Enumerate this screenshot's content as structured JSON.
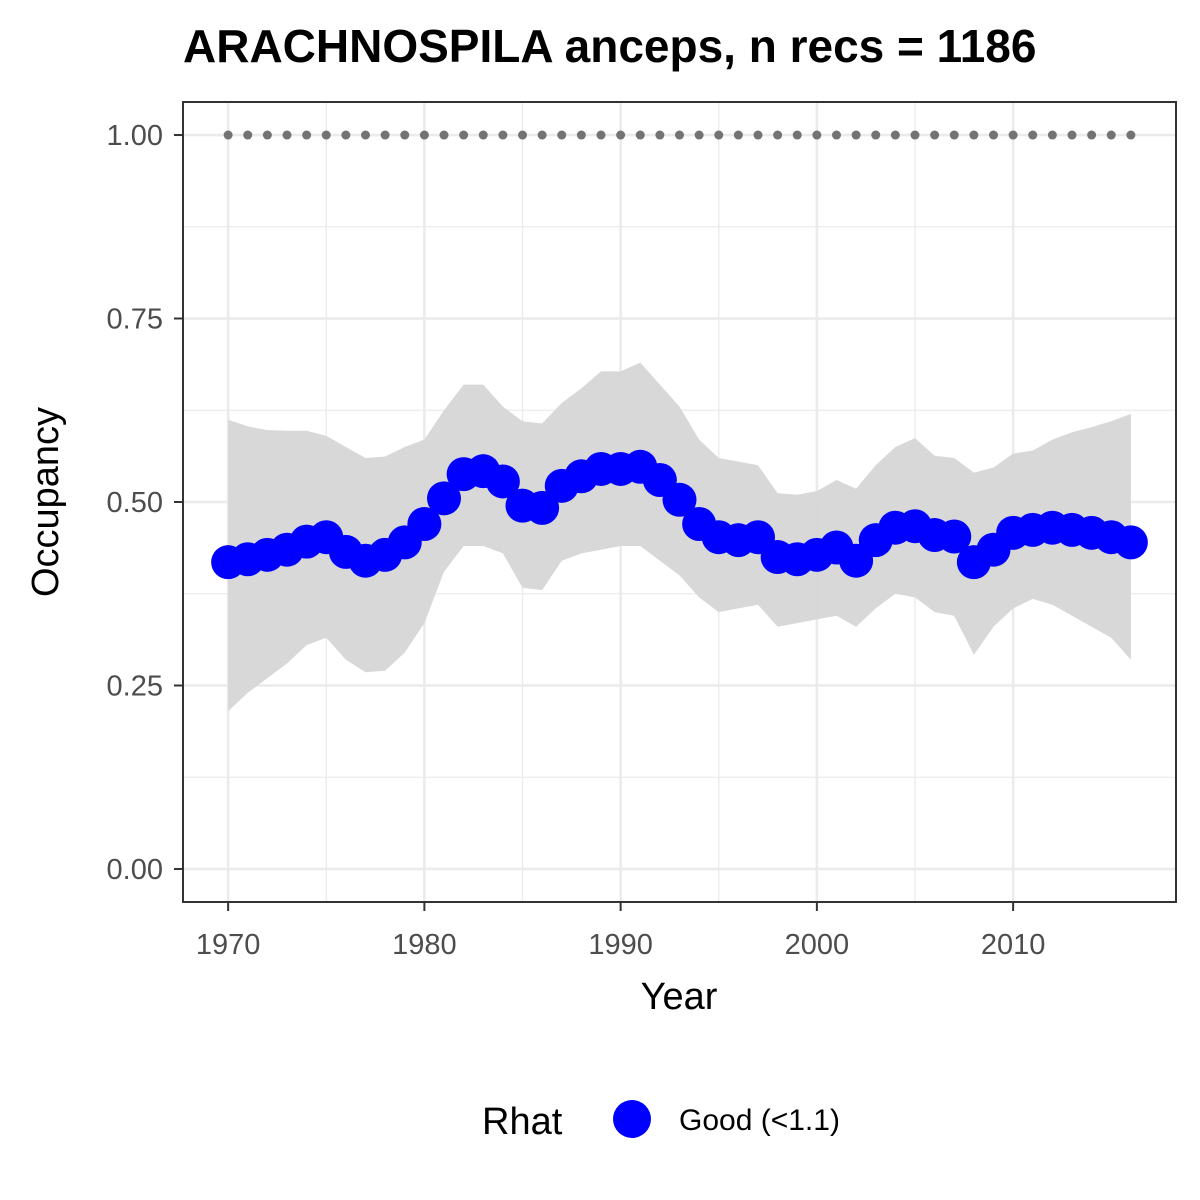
{
  "chart_data": {
    "type": "line",
    "title": "ARACHNOSPILA anceps, n recs = 1186",
    "xlabel": "Year",
    "ylabel": "Occupancy",
    "xlim": [
      1967.7,
      2018.3
    ],
    "ylim": [
      -0.045,
      1.045
    ],
    "x_ticks": [
      1970,
      1980,
      1990,
      2000,
      2010
    ],
    "y_ticks": [
      0.0,
      0.25,
      0.5,
      0.75,
      1.0
    ],
    "y_tick_labels": [
      "0.00",
      "0.25",
      "0.50",
      "0.75",
      "1.00"
    ],
    "grid": true,
    "legend": {
      "title": "Rhat",
      "position": "bottom",
      "entries": [
        {
          "label": "Good (<1.1)",
          "color": "#0000ff"
        }
      ]
    },
    "colors": {
      "points": "#0000ff",
      "ribbon": "#d6d6d6",
      "reference": "#737373",
      "panel_border": "#333333",
      "grid": "#ebebeb"
    },
    "x": [
      1970,
      1971,
      1972,
      1973,
      1974,
      1975,
      1976,
      1977,
      1978,
      1979,
      1980,
      1981,
      1982,
      1983,
      1984,
      1985,
      1986,
      1987,
      1988,
      1989,
      1990,
      1991,
      1992,
      1993,
      1994,
      1995,
      1996,
      1997,
      1998,
      1999,
      2000,
      2001,
      2002,
      2003,
      2004,
      2005,
      2006,
      2007,
      2008,
      2009,
      2010,
      2011,
      2012,
      2013,
      2014,
      2015,
      2016
    ],
    "series": [
      {
        "values": [
          0.418,
          0.422,
          0.428,
          0.435,
          0.446,
          0.452,
          0.432,
          0.42,
          0.428,
          0.445,
          0.47,
          0.505,
          0.538,
          0.542,
          0.528,
          0.495,
          0.492,
          0.522,
          0.535,
          0.545,
          0.545,
          0.548,
          0.53,
          0.503,
          0.47,
          0.452,
          0.448,
          0.452,
          0.425,
          0.422,
          0.428,
          0.438,
          0.42,
          0.448,
          0.465,
          0.467,
          0.455,
          0.453,
          0.418,
          0.435,
          0.458,
          0.462,
          0.465,
          0.462,
          0.458,
          0.452,
          0.445
        ],
        "lower": [
          0.215,
          0.24,
          0.26,
          0.28,
          0.305,
          0.315,
          0.285,
          0.268,
          0.27,
          0.295,
          0.335,
          0.405,
          0.44,
          0.44,
          0.43,
          0.383,
          0.38,
          0.42,
          0.43,
          0.435,
          0.44,
          0.44,
          0.42,
          0.4,
          0.37,
          0.35,
          0.355,
          0.36,
          0.33,
          0.335,
          0.34,
          0.345,
          0.33,
          0.355,
          0.375,
          0.37,
          0.35,
          0.345,
          0.292,
          0.33,
          0.355,
          0.368,
          0.36,
          0.345,
          0.33,
          0.315,
          0.285
        ],
        "upper": [
          0.612,
          0.603,
          0.598,
          0.597,
          0.597,
          0.59,
          0.575,
          0.56,
          0.562,
          0.575,
          0.585,
          0.625,
          0.66,
          0.66,
          0.63,
          0.61,
          0.607,
          0.635,
          0.655,
          0.678,
          0.678,
          0.69,
          0.66,
          0.63,
          0.585,
          0.56,
          0.555,
          0.55,
          0.512,
          0.51,
          0.515,
          0.53,
          0.518,
          0.55,
          0.575,
          0.587,
          0.563,
          0.56,
          0.54,
          0.547,
          0.566,
          0.57,
          0.585,
          0.595,
          0.602,
          0.61,
          0.62
        ]
      }
    ],
    "reference_line": {
      "x": [
        1970,
        1971,
        1972,
        1973,
        1974,
        1975,
        1976,
        1977,
        1978,
        1979,
        1980,
        1981,
        1982,
        1983,
        1984,
        1985,
        1986,
        1987,
        1988,
        1989,
        1990,
        1991,
        1992,
        1993,
        1994,
        1995,
        1996,
        1997,
        1998,
        1999,
        2000,
        2001,
        2002,
        2003,
        2004,
        2005,
        2006,
        2007,
        2008,
        2009,
        2010,
        2011,
        2012,
        2013,
        2014,
        2015,
        2016
      ],
      "value": 1.0
    }
  }
}
